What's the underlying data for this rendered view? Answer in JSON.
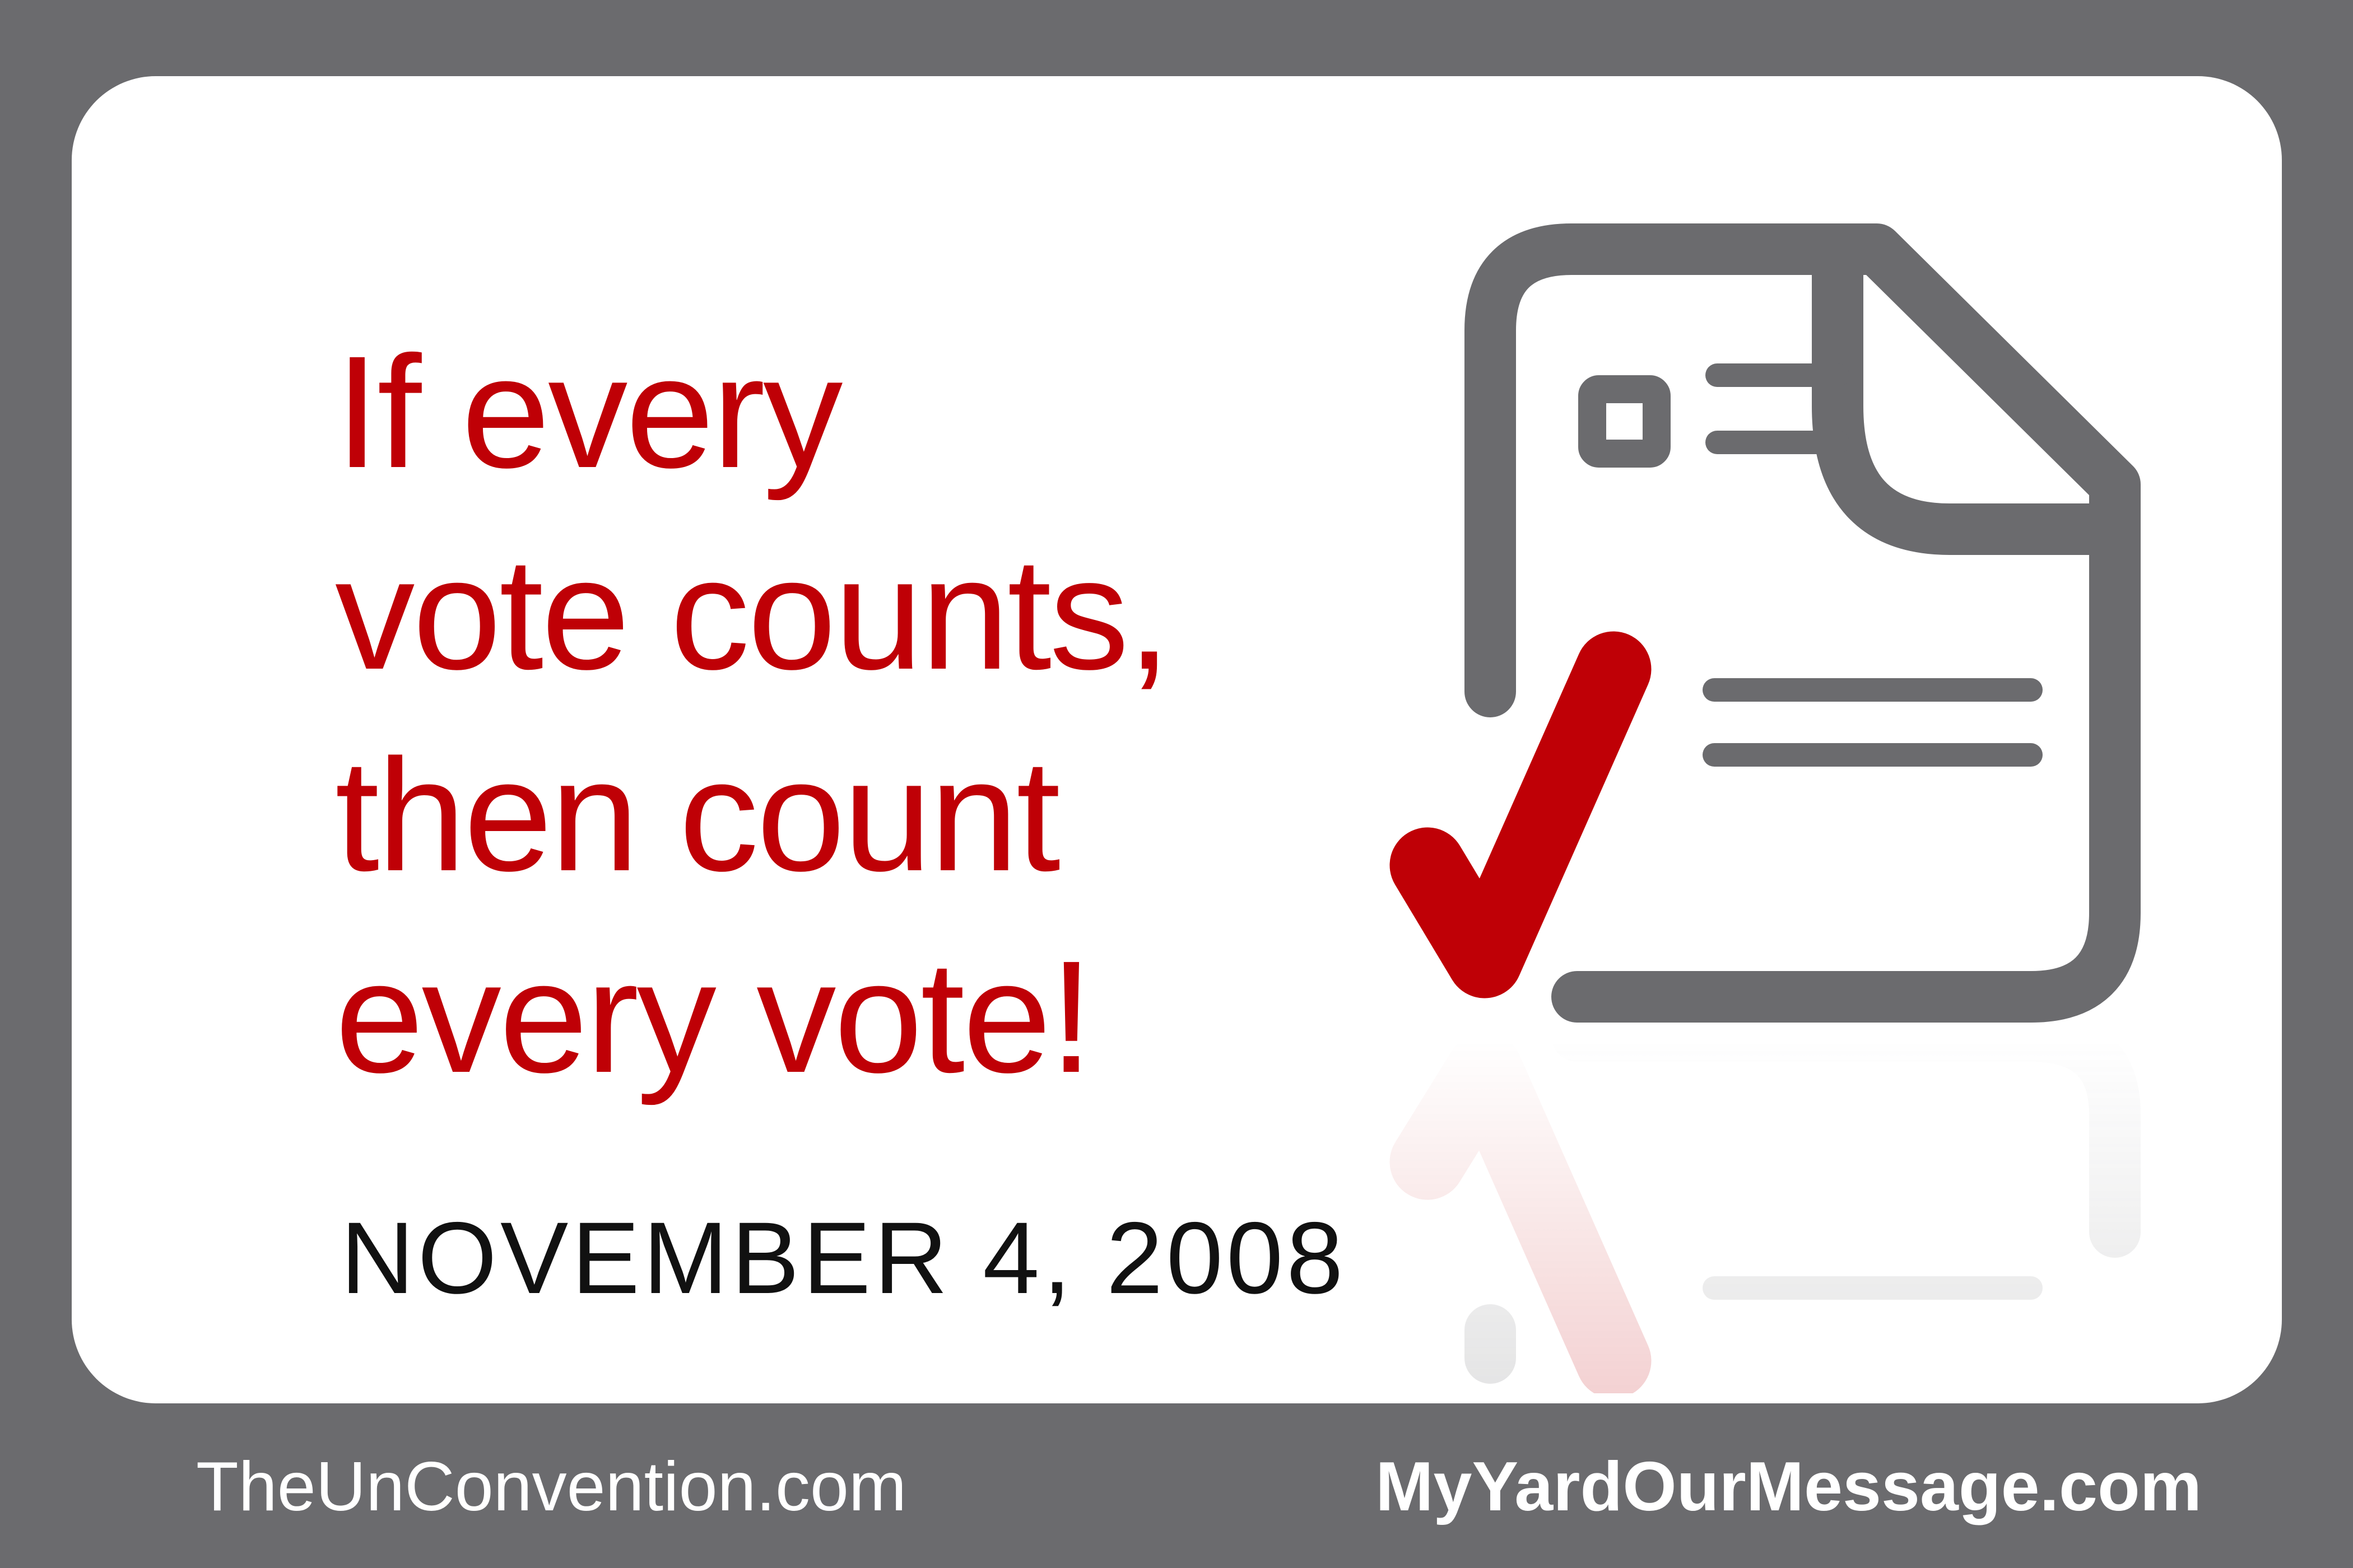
{
  "headline": {
    "lines": [
      "If every",
      "vote counts,",
      "then count",
      "every vote!"
    ]
  },
  "date": "NOVEMBER 4, 2008",
  "footer": {
    "left_site": "TheUnConvention.com",
    "right_site": "MyYardOurMessage.com"
  },
  "icons": {
    "ballot": "ballot-document-icon",
    "check": "checkmark-icon"
  },
  "colors": {
    "frame": "#6b6b6e",
    "panel": "#ffffff",
    "headline": "#bf0006",
    "date": "#111111",
    "footer": "#ffffff"
  }
}
